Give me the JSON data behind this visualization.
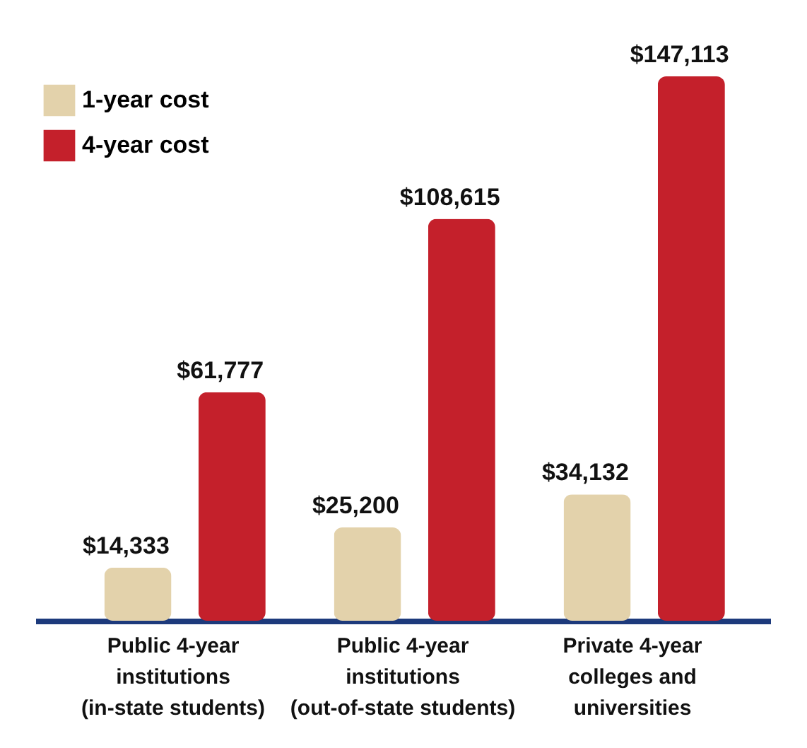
{
  "chart_data": {
    "type": "bar",
    "categories": [
      "Public 4-year\ninstitutions\n(in-state students)",
      "Public 4-year\ninstitutions\n(out-of-state students)",
      "Private 4-year\ncolleges and\nuniversities"
    ],
    "series": [
      {
        "name": "1-year cost",
        "color": "#e3d2ab",
        "values": [
          14333,
          25200,
          34132
        ],
        "value_labels": [
          "$14,333",
          "$25,200",
          "$34,132"
        ]
      },
      {
        "name": "4-year cost",
        "color": "#c4202b",
        "values": [
          61777,
          108615,
          147113
        ],
        "value_labels": [
          "$61,777",
          "$108,615",
          "$147,113"
        ]
      }
    ],
    "legend": "top left"
  }
}
